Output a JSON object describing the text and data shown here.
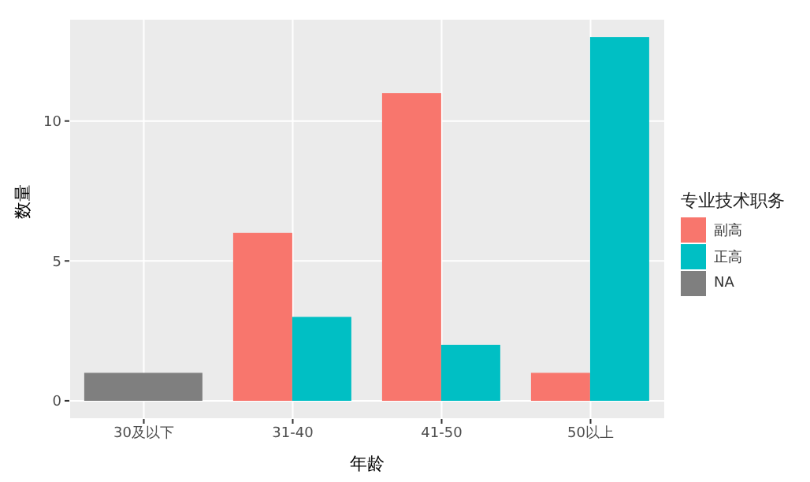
{
  "chart_data": {
    "type": "bar",
    "xlabel": "年龄",
    "ylabel": "数量",
    "legend_title": "专业技术职务",
    "categories": [
      "30及以下",
      "31-40",
      "41-50",
      "50以上"
    ],
    "series": [
      {
        "name": "副高",
        "color": "#f8766d",
        "values": [
          null,
          6,
          11,
          1
        ]
      },
      {
        "name": "正高",
        "color": "#00bfc4",
        "values": [
          null,
          3,
          2,
          13
        ]
      },
      {
        "name": "NA",
        "color": "#7f7f7f",
        "values": [
          1,
          null,
          null,
          null
        ]
      }
    ],
    "ylim": [
      -0.65,
      13.65
    ],
    "yticks": [
      0,
      5,
      10
    ],
    "grid": true,
    "legend": "right"
  }
}
